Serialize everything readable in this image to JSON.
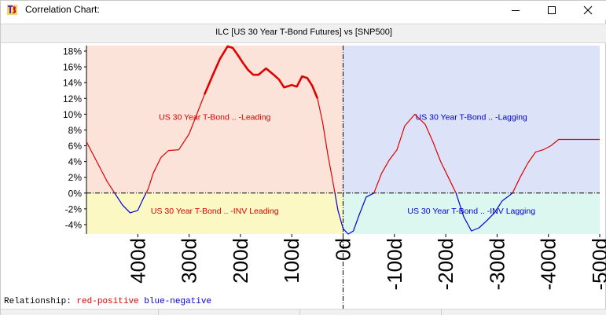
{
  "window": {
    "title": "Correlation Chart:",
    "icon": "app-logo-icon",
    "controls": [
      "minimize-icon",
      "maximize-icon",
      "close-icon"
    ]
  },
  "header": {
    "title": "ILC [US 30 Year T-Bond Futures] vs [SNP500]"
  },
  "status": {
    "label": "Relationship:",
    "positive": "red-positive",
    "negative": "blue-negative"
  },
  "colors": {
    "positive_line": "#e00000",
    "negative_line": "#0000d8",
    "leading_bg": "#fbe3da",
    "lagging_bg": "#dce3f8",
    "inv_leading_bg": "#fbf8c4",
    "inv_lagging_bg": "#dcf7f0"
  },
  "chart_data": {
    "type": "line",
    "xlim": [
      500,
      -500
    ],
    "ylim": [
      -5.2,
      18.7
    ],
    "x_ticks": [
      "400d",
      "300d",
      "200d",
      "100d",
      "0d",
      "-100d",
      "-200d",
      "-300d",
      "-400d",
      "-500d"
    ],
    "x_tick_values": [
      400,
      300,
      200,
      100,
      0,
      -100,
      -200,
      -300,
      -400,
      -500
    ],
    "y_ticks": [
      "18%",
      "16%",
      "14%",
      "12%",
      "10%",
      "8%",
      "6%",
      "4%",
      "2%",
      "0%",
      "-2%",
      "-4%"
    ],
    "y_tick_values": [
      18,
      16,
      14,
      12,
      10,
      8,
      6,
      4,
      2,
      0,
      -2,
      -4
    ],
    "regions": {
      "leading": "US 30 Year T-Bond .. -Leading",
      "lagging": "US 30 Year T-Bond .. -Lagging",
      "inv_leading": "US 30 Year T-Bond .. -INV Leading",
      "inv_lagging": "US 30 Year T-Bond .. -INV Lagging"
    },
    "series": [
      {
        "x": [
          500,
          480,
          460,
          445,
          430,
          415,
          400,
          390,
          380,
          370,
          355,
          340,
          320,
          300,
          285,
          270,
          255,
          240,
          225,
          215,
          205,
          195,
          185,
          175,
          165,
          150,
          135,
          125,
          115,
          100,
          90,
          80,
          70,
          60,
          50,
          40,
          30,
          20,
          10,
          0,
          -10,
          -20,
          -30,
          -45,
          -60,
          -75,
          -90,
          -105,
          -120,
          -140,
          -160,
          -175,
          -190,
          -205,
          -220,
          -235,
          -250,
          -265,
          -280,
          -295,
          -310,
          -330,
          -345,
          -360,
          -375,
          -390,
          -405,
          -420,
          -440,
          -460,
          -480,
          -500
        ],
        "y": [
          6.5,
          4.0,
          1.5,
          0.0,
          -1.5,
          -2.5,
          -2.2,
          -0.8,
          0.5,
          2.5,
          4.5,
          5.4,
          5.5,
          7.5,
          10.0,
          12.5,
          14.8,
          17.0,
          18.6,
          18.4,
          17.5,
          16.5,
          15.6,
          15.0,
          15.0,
          15.8,
          15.0,
          14.4,
          13.4,
          13.7,
          13.5,
          14.8,
          14.6,
          13.6,
          12.0,
          9.0,
          5.0,
          1.5,
          -2.2,
          -4.5,
          -5.2,
          -4.8,
          -3.0,
          -0.5,
          0.0,
          2.5,
          4.2,
          5.5,
          8.5,
          10.0,
          8.7,
          6.5,
          4.0,
          2.0,
          0.0,
          -3.0,
          -4.8,
          -4.4,
          -3.5,
          -2.5,
          -1.0,
          0.0,
          2.0,
          3.8,
          5.2,
          5.5,
          6.0,
          6.8,
          6.8,
          6.8,
          6.8,
          6.8
        ]
      }
    ]
  }
}
